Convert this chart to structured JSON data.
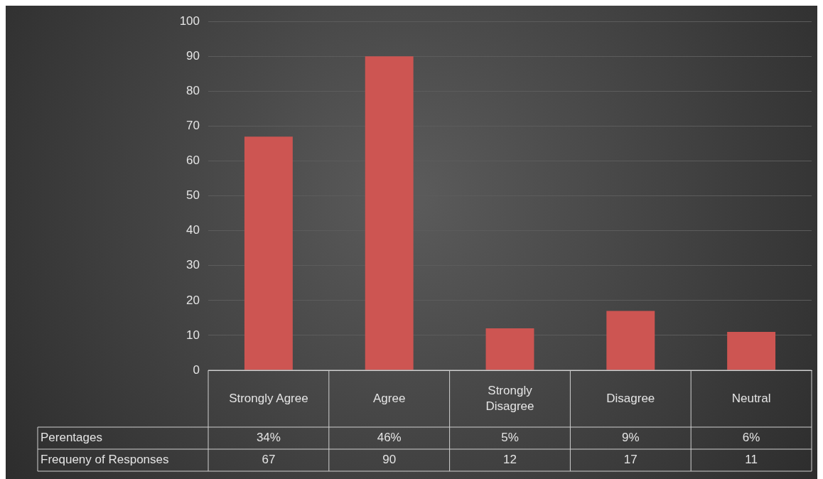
{
  "chart_data": {
    "type": "bar",
    "categories": [
      "Strongly Agree",
      "Agree",
      "Strongly Disagree",
      "Disagree",
      "Neutral"
    ],
    "series": [
      {
        "name": "Frequeny of Responses",
        "color": "#cd5552",
        "values": [
          67,
          90,
          12,
          17,
          11
        ]
      }
    ],
    "ylim": [
      0,
      100
    ],
    "yticks": [
      0,
      10,
      20,
      30,
      40,
      50,
      60,
      70,
      80,
      90,
      100
    ],
    "grid": "y",
    "data_labels": true,
    "annotations": [
      "Perentages",
      "34%",
      "46%",
      "5%",
      "9%",
      "6%"
    ]
  }
}
